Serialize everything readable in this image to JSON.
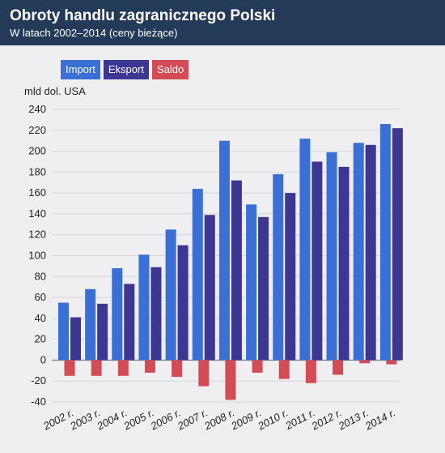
{
  "header": {
    "title": "Obroty handlu zagranicznego Polski",
    "subtitle": "W latach 2002–2014 (ceny bieżące)"
  },
  "colors": {
    "header_bg": "#243a59",
    "import": "#3a6fd6",
    "eksport": "#3d3794",
    "saldo": "#d34c55",
    "background": "#efeff2"
  },
  "chart_data": {
    "type": "bar",
    "ylabel": "mld dol. USA",
    "ylim": [
      -40,
      240
    ],
    "yticks": [
      -40,
      -20,
      0,
      20,
      40,
      60,
      80,
      100,
      120,
      140,
      160,
      180,
      200,
      220,
      240
    ],
    "categories": [
      "2002 r.",
      "2003 r.",
      "2004 r.",
      "2005 r.",
      "2006 r.",
      "2007 r.",
      "2008 r.",
      "2009 r.",
      "2010 r.",
      "2011 r.",
      "2012 r.",
      "2013 r.",
      "2014 r."
    ],
    "series": [
      {
        "name": "Import",
        "values": [
          55,
          68,
          88,
          101,
          125,
          164,
          210,
          149,
          178,
          212,
          199,
          208,
          226
        ]
      },
      {
        "name": "Eksport",
        "values": [
          41,
          54,
          73,
          89,
          110,
          139,
          172,
          137,
          160,
          190,
          185,
          206,
          222
        ]
      },
      {
        "name": "Saldo",
        "values": [
          -15,
          -15,
          -15,
          -12,
          -16,
          -25,
          -38,
          -12,
          -18,
          -22,
          -14,
          -3,
          -4
        ]
      }
    ],
    "grid": true,
    "legend_position": "top-left"
  }
}
